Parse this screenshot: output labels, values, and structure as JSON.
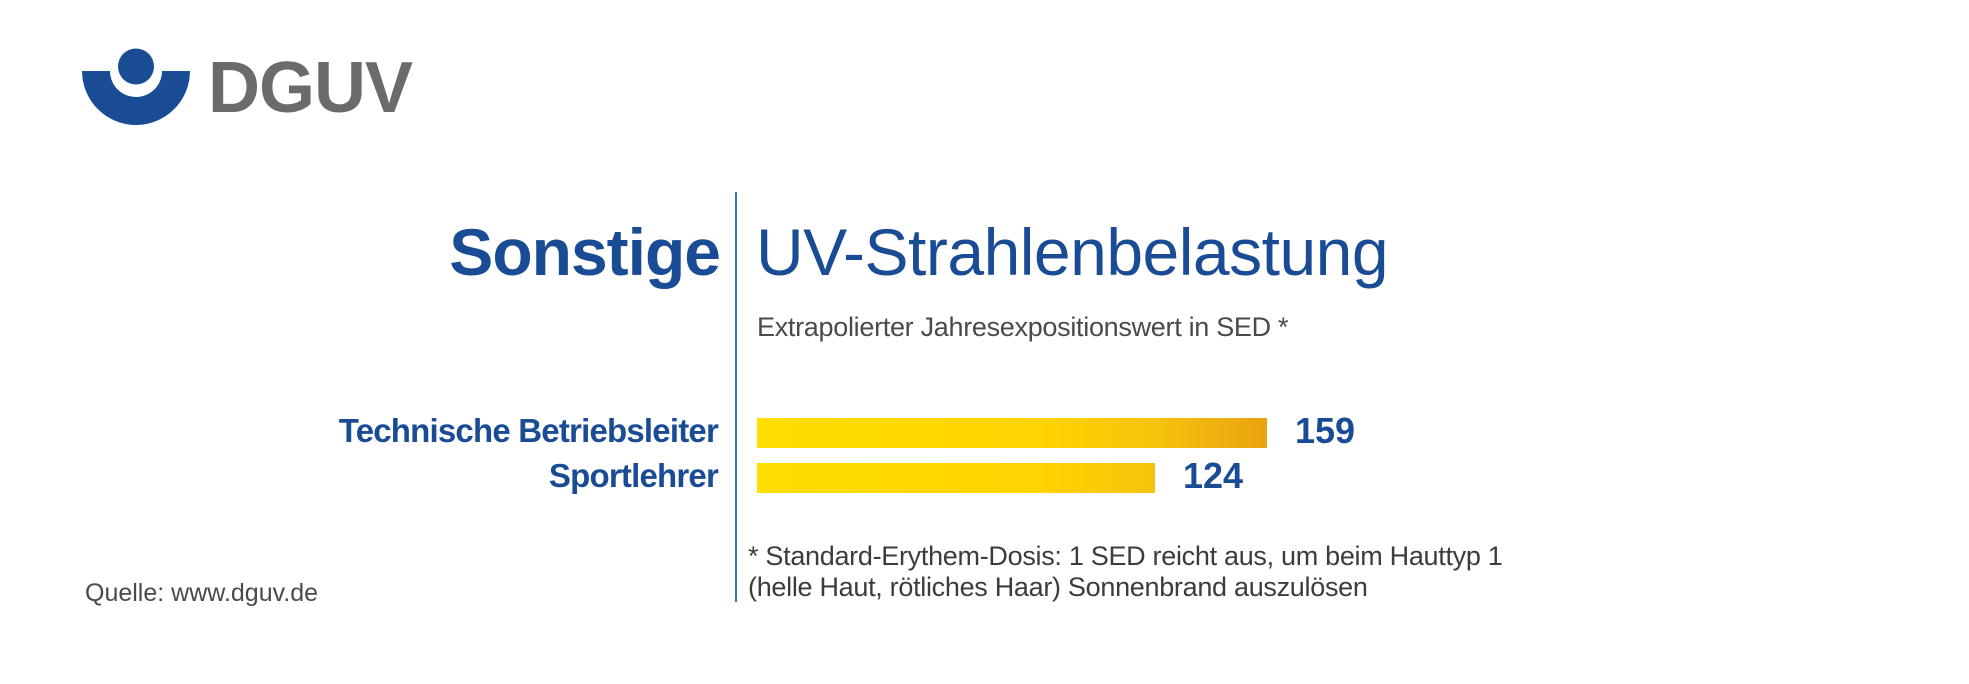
{
  "logo": {
    "brand": "DGUV",
    "symbol_color": "#1A4C96",
    "wordmark_color": "#6B6B6B"
  },
  "header": {
    "category": "Sonstige",
    "title": "UV-Strahlenbelastung",
    "subtitle": "Extrapolierter Jahresexpositionswert in SED *"
  },
  "chart_data": {
    "type": "bar",
    "orientation": "horizontal",
    "title": "UV-Strahlenbelastung",
    "subtitle": "Extrapolierter Jahresexpositionswert in SED *",
    "categories": [
      "Technische Betriebsleiter",
      "Sportlehrer"
    ],
    "values": [
      159,
      124
    ],
    "unit": "SED",
    "xlim": [
      0,
      159
    ],
    "grid": false,
    "legend": false,
    "value_labels_position": "right-of-bar",
    "bar_gradient": [
      "#FFDE00",
      "#FFD400",
      "#F6C30C",
      "#E9A210"
    ],
    "label_color": "#1A4C96"
  },
  "footnote": {
    "lines": [
      "* Standard-Erythem-Dosis: 1 SED reicht aus, um beim Hauttyp 1",
      "(helle Haut, rötliches Haar) Sonnenbrand auszulösen"
    ]
  },
  "source": {
    "text": "Quelle: www.dguv.de"
  },
  "divider": {
    "color": "#3F74A8"
  }
}
